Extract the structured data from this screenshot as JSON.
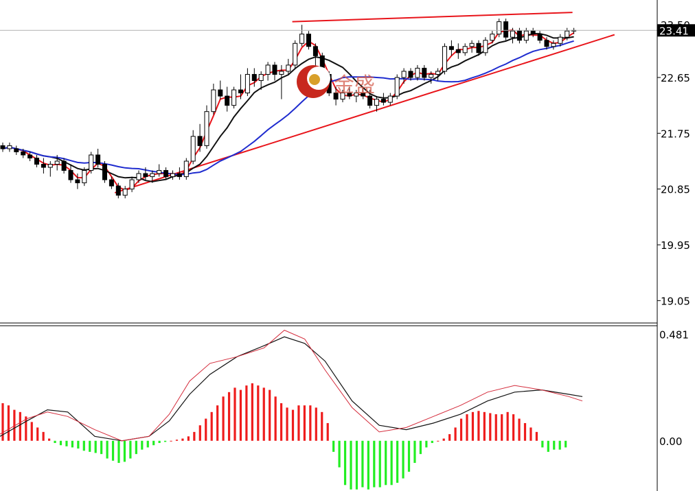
{
  "colors": {
    "background": "#ffffff",
    "frame": "#000000",
    "candle_up_body": "#ffffff",
    "candle_down_body": "#000000",
    "ma_fast": "#e8141a",
    "ma_mid": "#111111",
    "ma_slow": "#1f2ccf",
    "trendline": "#e8141a",
    "hist_positive": "#ee1c1c",
    "hist_negative": "#22ee22",
    "macd_line": "#111111",
    "signal_line": "#d42a3a",
    "price_tag_bg": "#000000",
    "price_tag_text": "#ffffff",
    "watermark_red": "#c8281e",
    "watermark_gold": "#d8a02a"
  },
  "watermark": {
    "text": "金盛",
    "logo": "jinsheng-logo-icon"
  },
  "chart_data": [
    {
      "type": "candlestick",
      "panel": "price",
      "ylim": [
        18.7,
        23.9
      ],
      "y_ticks": [
        "23.50",
        "22.65",
        "21.75",
        "20.85",
        "19.95",
        "19.05"
      ],
      "current_price": "23.41",
      "grid": false,
      "candles": [
        [
          21.55,
          21.6,
          21.45,
          21.5
        ],
        [
          21.5,
          21.6,
          21.45,
          21.55
        ],
        [
          21.5,
          21.55,
          21.4,
          21.45
        ],
        [
          21.45,
          21.5,
          21.35,
          21.4
        ],
        [
          21.4,
          21.45,
          21.3,
          21.35
        ],
        [
          21.35,
          21.4,
          21.2,
          21.25
        ],
        [
          21.25,
          21.35,
          21.1,
          21.2
        ],
        [
          21.2,
          21.3,
          21.05,
          21.25
        ],
        [
          21.25,
          21.4,
          21.15,
          21.3
        ],
        [
          21.3,
          21.35,
          21.1,
          21.15
        ],
        [
          21.15,
          21.25,
          20.95,
          21.0
        ],
        [
          21.0,
          21.1,
          20.85,
          20.95
        ],
        [
          20.95,
          21.2,
          20.9,
          21.15
        ],
        [
          21.15,
          21.45,
          21.1,
          21.4
        ],
        [
          21.4,
          21.5,
          21.2,
          21.25
        ],
        [
          21.25,
          21.3,
          20.95,
          21.0
        ],
        [
          21.0,
          21.05,
          20.85,
          20.9
        ],
        [
          20.9,
          20.95,
          20.7,
          20.75
        ],
        [
          20.75,
          20.9,
          20.7,
          20.85
        ],
        [
          20.85,
          21.05,
          20.8,
          21.0
        ],
        [
          21.0,
          21.15,
          20.95,
          21.1
        ],
        [
          21.1,
          21.2,
          21.0,
          21.05
        ],
        [
          21.05,
          21.15,
          20.95,
          21.1
        ],
        [
          21.1,
          21.25,
          21.05,
          21.15
        ],
        [
          21.15,
          21.2,
          21.0,
          21.05
        ],
        [
          21.05,
          21.15,
          21.0,
          21.1
        ],
        [
          21.1,
          21.2,
          21.0,
          21.05
        ],
        [
          21.05,
          21.35,
          21.0,
          21.3
        ],
        [
          21.3,
          21.8,
          21.25,
          21.7
        ],
        [
          21.7,
          21.9,
          21.45,
          21.55
        ],
        [
          21.55,
          22.2,
          21.5,
          22.1
        ],
        [
          22.1,
          22.55,
          22.05,
          22.45
        ],
        [
          22.45,
          22.6,
          22.3,
          22.35
        ],
        [
          22.35,
          22.5,
          22.1,
          22.2
        ],
        [
          22.2,
          22.5,
          22.15,
          22.45
        ],
        [
          22.45,
          22.7,
          22.3,
          22.4
        ],
        [
          22.4,
          22.8,
          22.35,
          22.7
        ],
        [
          22.7,
          22.8,
          22.5,
          22.6
        ],
        [
          22.6,
          22.75,
          22.45,
          22.7
        ],
        [
          22.7,
          22.9,
          22.6,
          22.85
        ],
        [
          22.85,
          22.9,
          22.6,
          22.7
        ],
        [
          22.7,
          22.85,
          22.3,
          22.75
        ],
        [
          22.75,
          22.95,
          22.7,
          22.85
        ],
        [
          22.85,
          23.25,
          22.8,
          23.2
        ],
        [
          23.2,
          23.5,
          23.15,
          23.35
        ],
        [
          23.35,
          23.4,
          23.1,
          23.15
        ],
        [
          23.15,
          23.2,
          22.8,
          23.0
        ],
        [
          23.0,
          23.05,
          22.6,
          22.7
        ],
        [
          22.7,
          22.75,
          22.35,
          22.4
        ],
        [
          22.4,
          22.5,
          22.2,
          22.3
        ],
        [
          22.3,
          22.45,
          22.25,
          22.4
        ],
        [
          22.4,
          22.5,
          22.3,
          22.35
        ],
        [
          22.35,
          22.45,
          22.25,
          22.4
        ],
        [
          22.4,
          22.5,
          22.3,
          22.35
        ],
        [
          22.35,
          22.45,
          22.15,
          22.2
        ],
        [
          22.2,
          22.35,
          22.1,
          22.3
        ],
        [
          22.3,
          22.4,
          22.2,
          22.25
        ],
        [
          22.25,
          22.4,
          22.2,
          22.35
        ],
        [
          22.35,
          22.7,
          22.3,
          22.65
        ],
        [
          22.65,
          22.8,
          22.55,
          22.75
        ],
        [
          22.75,
          22.8,
          22.6,
          22.65
        ],
        [
          22.65,
          22.85,
          22.6,
          22.8
        ],
        [
          22.8,
          22.85,
          22.6,
          22.65
        ],
        [
          22.65,
          22.75,
          22.55,
          22.7
        ],
        [
          22.7,
          22.8,
          22.6,
          22.75
        ],
        [
          22.75,
          23.2,
          22.7,
          23.15
        ],
        [
          23.15,
          23.25,
          23.0,
          23.1
        ],
        [
          23.1,
          23.2,
          22.95,
          23.05
        ],
        [
          23.05,
          23.2,
          23.0,
          23.15
        ],
        [
          23.15,
          23.25,
          23.05,
          23.2
        ],
        [
          23.2,
          23.25,
          23.0,
          23.05
        ],
        [
          23.05,
          23.3,
          23.0,
          23.25
        ],
        [
          23.25,
          23.4,
          23.2,
          23.35
        ],
        [
          23.35,
          23.6,
          23.3,
          23.55
        ],
        [
          23.55,
          23.6,
          23.25,
          23.3
        ],
        [
          23.3,
          23.45,
          23.2,
          23.4
        ],
        [
          23.4,
          23.45,
          23.2,
          23.25
        ],
        [
          23.25,
          23.45,
          23.2,
          23.4
        ],
        [
          23.4,
          23.45,
          23.3,
          23.35
        ],
        [
          23.35,
          23.4,
          23.2,
          23.25
        ],
        [
          23.25,
          23.3,
          23.1,
          23.15
        ],
        [
          23.15,
          23.25,
          23.1,
          23.2
        ],
        [
          23.2,
          23.35,
          23.15,
          23.3
        ],
        [
          23.3,
          23.45,
          23.25,
          23.4
        ],
        [
          23.4,
          23.45,
          23.35,
          23.41
        ]
      ],
      "moving_averages": [
        {
          "name": "",
          "period": 3
        },
        {
          "name": "",
          "period": 8
        },
        {
          "name": "",
          "period": 21
        }
      ],
      "trendlines": [
        {
          "from": [
            62,
            23.55
          ],
          "to": [
            122,
            23.7
          ]
        },
        {
          "from": [
            24,
            20.79
          ],
          "to": [
            131,
            23.34
          ]
        }
      ]
    },
    {
      "type": "macd",
      "panel": "oscillator",
      "ylim": [
        -0.227,
        0.517
      ],
      "y_ticks": [
        "0.481",
        "0.00"
      ],
      "grid": false,
      "histogram": [
        0.17,
        0.16,
        0.14,
        0.13,
        0.11,
        0.085,
        0.06,
        0.04,
        0.01,
        -0.01,
        -0.02,
        -0.025,
        -0.03,
        -0.035,
        -0.045,
        -0.05,
        -0.055,
        -0.06,
        -0.08,
        -0.09,
        -0.1,
        -0.095,
        -0.08,
        -0.06,
        -0.04,
        -0.03,
        -0.02,
        -0.01,
        -0.005,
        0.0,
        0.005,
        0.01,
        0.02,
        0.04,
        0.07,
        0.1,
        0.13,
        0.16,
        0.2,
        0.22,
        0.24,
        0.23,
        0.25,
        0.26,
        0.25,
        0.24,
        0.23,
        0.2,
        0.17,
        0.15,
        0.14,
        0.16,
        0.16,
        0.16,
        0.15,
        0.13,
        0.08,
        -0.05,
        -0.12,
        -0.2,
        -0.22,
        -0.22,
        -0.21,
        -0.22,
        -0.21,
        -0.21,
        -0.2,
        -0.2,
        -0.19,
        -0.17,
        -0.14,
        -0.1,
        -0.06,
        -0.03,
        -0.01,
        0.0,
        0.01,
        0.03,
        0.06,
        0.1,
        0.12,
        0.13,
        0.135,
        0.13,
        0.125,
        0.12,
        0.12,
        0.13,
        0.12,
        0.1,
        0.08,
        0.06,
        0.04,
        -0.03,
        -0.05,
        -0.04,
        -0.04,
        -0.03
      ],
      "macd_line": [
        [
          0,
          0.02
        ],
        [
          8,
          0.09
        ],
        [
          14,
          0.14
        ],
        [
          20,
          0.13
        ],
        [
          28,
          0.02
        ],
        [
          36,
          0.0
        ],
        [
          44,
          0.02
        ],
        [
          50,
          0.09
        ],
        [
          56,
          0.21
        ],
        [
          62,
          0.3
        ],
        [
          70,
          0.38
        ],
        [
          78,
          0.43
        ],
        [
          84,
          0.47
        ],
        [
          90,
          0.44
        ],
        [
          96,
          0.36
        ],
        [
          104,
          0.18
        ],
        [
          112,
          0.07
        ],
        [
          120,
          0.05
        ],
        [
          128,
          0.08
        ],
        [
          136,
          0.12
        ],
        [
          144,
          0.18
        ],
        [
          152,
          0.22
        ],
        [
          160,
          0.23
        ],
        [
          168,
          0.21
        ],
        [
          172,
          0.2
        ]
      ],
      "signal_line": [
        [
          0,
          0.03
        ],
        [
          8,
          0.1
        ],
        [
          14,
          0.13
        ],
        [
          20,
          0.11
        ],
        [
          28,
          0.05
        ],
        [
          36,
          0.0
        ],
        [
          44,
          0.02
        ],
        [
          50,
          0.12
        ],
        [
          56,
          0.27
        ],
        [
          62,
          0.35
        ],
        [
          70,
          0.38
        ],
        [
          78,
          0.42
        ],
        [
          84,
          0.5
        ],
        [
          90,
          0.46
        ],
        [
          96,
          0.32
        ],
        [
          104,
          0.15
        ],
        [
          112,
          0.04
        ],
        [
          120,
          0.06
        ],
        [
          128,
          0.11
        ],
        [
          136,
          0.16
        ],
        [
          144,
          0.22
        ],
        [
          152,
          0.25
        ],
        [
          160,
          0.23
        ],
        [
          168,
          0.2
        ],
        [
          172,
          0.18
        ]
      ]
    }
  ]
}
